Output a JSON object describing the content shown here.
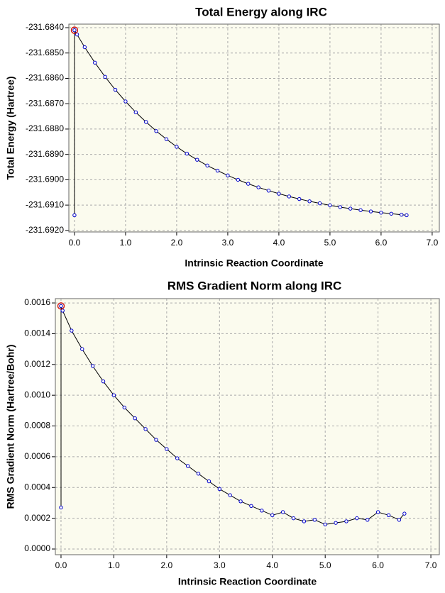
{
  "chart_data": [
    {
      "type": "line",
      "title": "Total Energy along IRC",
      "xlabel": "Intrinsic Reaction Coordinate",
      "ylabel": "Total Energy (Hartree)",
      "xlim": [
        -0.11,
        7.14
      ],
      "ylim": [
        -231.69206,
        -231.68386
      ],
      "xticks": [
        {
          "value": 0,
          "label": "0.0"
        },
        {
          "value": 1,
          "label": "1.0"
        },
        {
          "value": 2,
          "label": "2.0"
        },
        {
          "value": 3,
          "label": "3.0"
        },
        {
          "value": 4,
          "label": "4.0"
        },
        {
          "value": 5,
          "label": "5.0"
        },
        {
          "value": 6,
          "label": "6.0"
        },
        {
          "value": 7,
          "label": "7.0"
        }
      ],
      "yticks": [
        {
          "value": -231.684,
          "label": "-231.6840"
        },
        {
          "value": -231.685,
          "label": "-231.6850"
        },
        {
          "value": -231.686,
          "label": "-231.6860"
        },
        {
          "value": -231.687,
          "label": "-231.6870"
        },
        {
          "value": -231.688,
          "label": "-231.6880"
        },
        {
          "value": -231.689,
          "label": "-231.6890"
        },
        {
          "value": -231.69,
          "label": "-231.6900"
        },
        {
          "value": -231.691,
          "label": "-231.6910"
        },
        {
          "value": -231.692,
          "label": "-231.6920"
        }
      ],
      "grid": true,
      "color": "#0000cc",
      "highlight": 1,
      "x": [
        0.0,
        0.0,
        0.05,
        0.2,
        0.4,
        0.6,
        0.8,
        1.0,
        1.2,
        1.4,
        1.6,
        1.8,
        2.0,
        2.2,
        2.4,
        2.6,
        2.8,
        3.0,
        3.2,
        3.4,
        3.6,
        3.8,
        4.0,
        4.2,
        4.4,
        4.6,
        4.8,
        5.0,
        5.2,
        5.4,
        5.6,
        5.8,
        6.0,
        6.2,
        6.4,
        6.5
      ],
      "values": [
        -231.6914,
        -231.6841,
        -231.68427,
        -231.68477,
        -231.68538,
        -231.68594,
        -231.68645,
        -231.68691,
        -231.68734,
        -231.68772,
        -231.68808,
        -231.6884,
        -231.6887,
        -231.68897,
        -231.68921,
        -231.68944,
        -231.68964,
        -231.68983,
        -231.69,
        -231.69016,
        -231.6903,
        -231.69043,
        -231.69055,
        -231.69066,
        -231.69076,
        -231.69085,
        -231.69093,
        -231.69101,
        -231.69108,
        -231.69114,
        -231.6912,
        -231.69125,
        -231.6913,
        -231.69134,
        -231.69138,
        -231.6914
      ]
    },
    {
      "type": "line",
      "title": "RMS Gradient Norm along IRC",
      "xlabel": "Intrinsic Reaction Coordinate",
      "ylabel": "RMS Gradient Norm (Hartree/Bohr)",
      "xlim": [
        -0.107,
        7.16
      ],
      "ylim": [
        -3.69e-05,
        0.001628
      ],
      "xticks": [
        {
          "value": 0,
          "label": "0.0"
        },
        {
          "value": 1,
          "label": "1.0"
        },
        {
          "value": 2,
          "label": "2.0"
        },
        {
          "value": 3,
          "label": "3.0"
        },
        {
          "value": 4,
          "label": "4.0"
        },
        {
          "value": 5,
          "label": "5.0"
        },
        {
          "value": 6,
          "label": "6.0"
        },
        {
          "value": 7,
          "label": "7.0"
        }
      ],
      "yticks": [
        {
          "value": 0,
          "label": "0.0000"
        },
        0.0002,
        0.0004,
        0.0006,
        0.0008,
        {
          "value": 0.001,
          "label": "0.0010"
        },
        0.0012,
        0.0014,
        0.0016
      ],
      "grid": true,
      "color": "#0000cc",
      "highlight": 1,
      "x": [
        0.0,
        0.0,
        0.03,
        0.2,
        0.4,
        0.6,
        0.8,
        1.0,
        1.2,
        1.4,
        1.6,
        1.8,
        2.0,
        2.2,
        2.4,
        2.6,
        2.8,
        3.0,
        3.2,
        3.4,
        3.6,
        3.8,
        4.0,
        4.2,
        4.4,
        4.6,
        4.8,
        5.0,
        5.2,
        5.4,
        5.6,
        5.8,
        6.0,
        6.2,
        6.4,
        6.5
      ],
      "values": [
        0.00027,
        0.00158,
        0.00155,
        0.00142,
        0.0013,
        0.00119,
        0.00109,
        0.001,
        0.00092,
        0.00085,
        0.00078,
        0.00071,
        0.00065,
        0.00059,
        0.00054,
        0.00049,
        0.00044,
        0.00039,
        0.00035,
        0.00031,
        0.00028,
        0.00025,
        0.00022,
        0.00024,
        0.0002,
        0.00018,
        0.00019,
        0.00016,
        0.00017,
        0.00018,
        0.0002,
        0.00019,
        0.00024,
        0.00022,
        0.00019,
        0.00023
      ]
    }
  ]
}
